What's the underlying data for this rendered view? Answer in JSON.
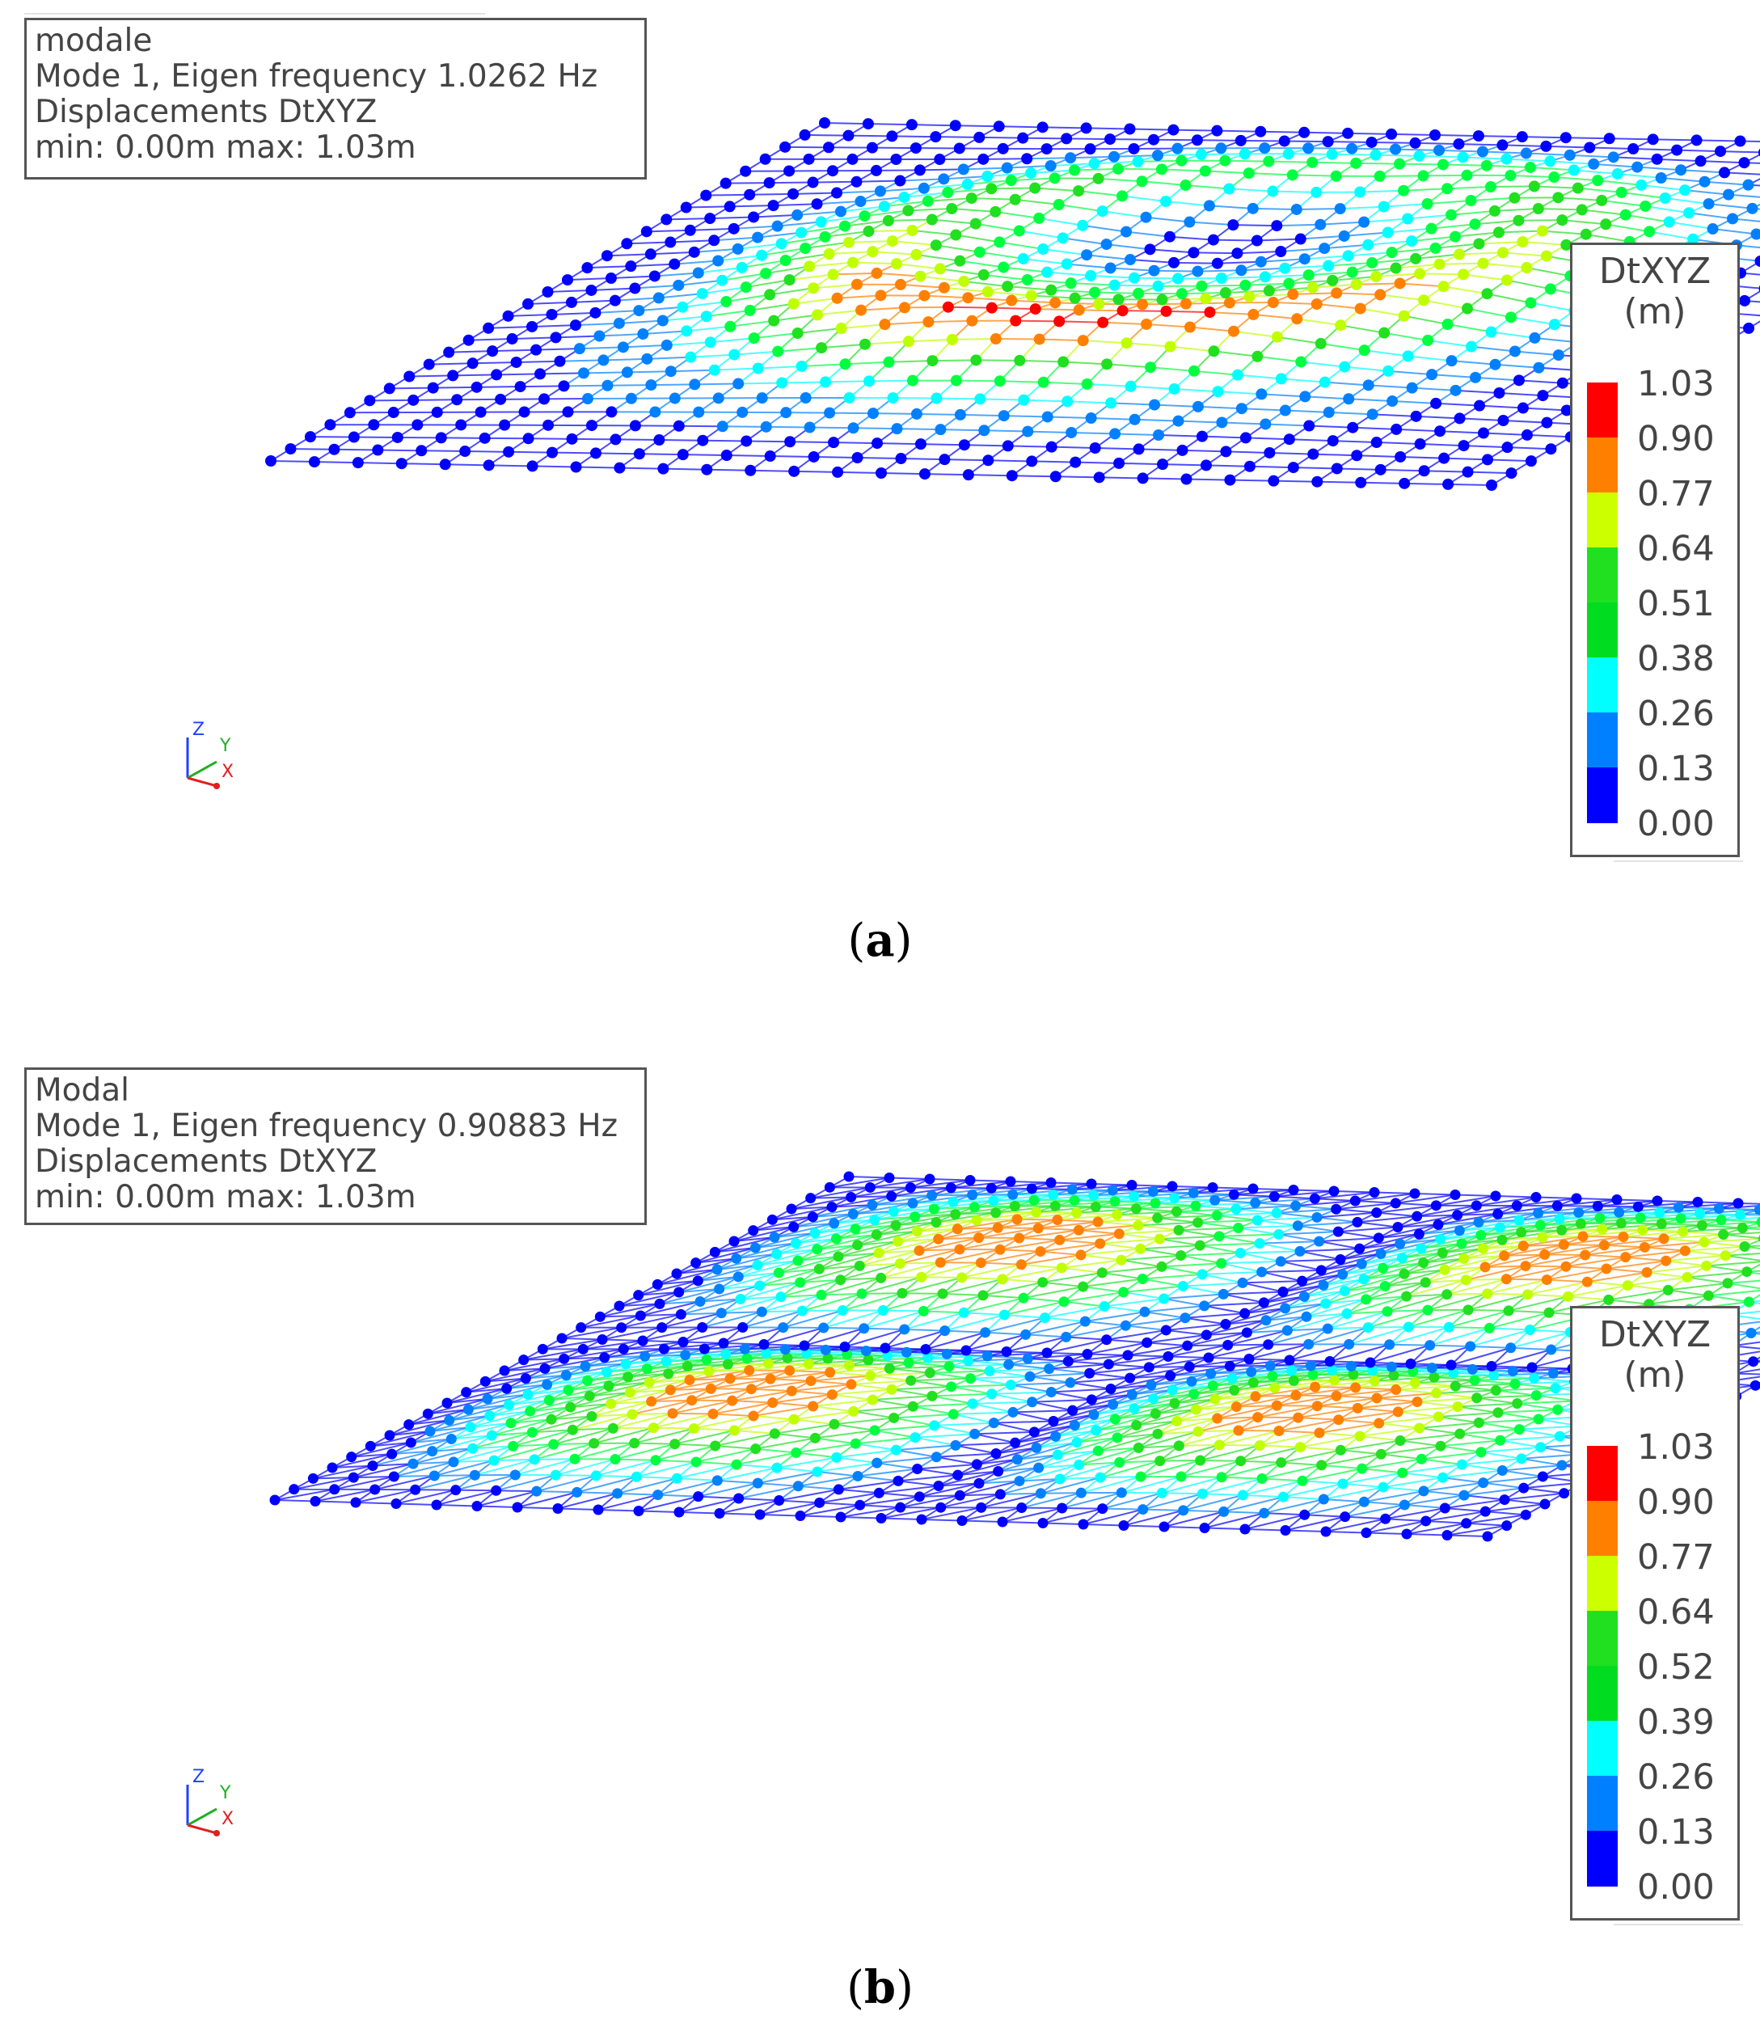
{
  "colors": {
    "scale": [
      "#0000ff",
      "#0080ff",
      "#00ffff",
      "#00ff40",
      "#20e020",
      "#c0ff00",
      "#ff8000",
      "#ff0000"
    ],
    "legend_bar": [
      "#0000ff",
      "#0080ff",
      "#00ffff",
      "#00dd20",
      "#20e020",
      "#ccff00",
      "#ff8000",
      "#ff0000"
    ]
  },
  "panels": [
    {
      "id": "a",
      "info": {
        "line1": "modale",
        "line2": "Mode 1, Eigen frequency 1.0262 Hz",
        "line3": "Displacements DtXYZ",
        "line4": "min:  0.00m max:  1.03m"
      },
      "legend": {
        "title": "DtXYZ",
        "unit": "(m)",
        "ticks": [
          "1.03",
          "0.90",
          "0.77",
          "0.64",
          "0.51",
          "0.38",
          "0.26",
          "0.13",
          "0.00"
        ]
      },
      "axes": {
        "z": "Z",
        "y": "Y",
        "x": "X"
      },
      "caption": "a"
    },
    {
      "id": "b",
      "info": {
        "line1": "Modal",
        "line2": "Mode 1, Eigen frequency 0.90883 Hz",
        "line3": "Displacements DtXYZ",
        "line4": "min:  0.00m max:  1.03m"
      },
      "legend": {
        "title": "DtXYZ",
        "unit": "(m)",
        "ticks": [
          "1.03",
          "0.90",
          "0.77",
          "0.64",
          "0.52",
          "0.39",
          "0.26",
          "0.13",
          "0.00"
        ]
      },
      "axes": {
        "z": "Z",
        "y": "Y",
        "x": "X"
      },
      "caption": "b"
    }
  ]
}
